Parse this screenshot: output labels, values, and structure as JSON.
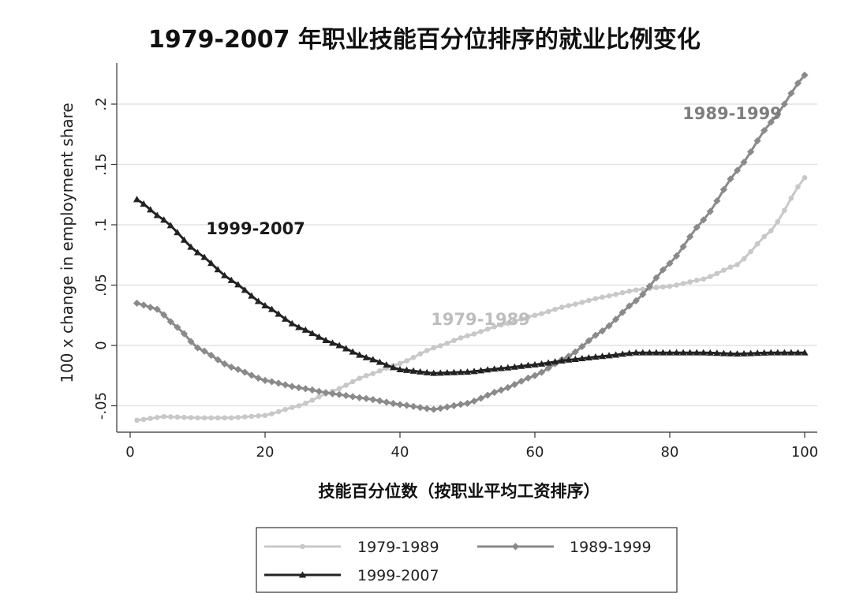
{
  "chart_data": {
    "type": "line",
    "title": "1979-2007 年职业技能百分位排序的就业比例变化",
    "xlabel": "技能百分位数（按职业平均工资排序）",
    "ylabel": "100 x change in employment share",
    "xlim": [
      0,
      100
    ],
    "ylim": [
      -0.065,
      0.225
    ],
    "x_ticks": [
      0,
      20,
      40,
      60,
      80,
      100
    ],
    "x_tick_labels": [
      "0",
      "20",
      "40",
      "60",
      "80",
      "100"
    ],
    "y_ticks": [
      -0.05,
      0,
      0.05,
      0.1,
      0.15,
      0.2
    ],
    "y_tick_labels": [
      "-.05",
      "0",
      ".05",
      ".1",
      ".15",
      ".2"
    ],
    "grid": true,
    "legend_position": "bottom",
    "series": [
      {
        "name": "1979-1989",
        "marker": "circle",
        "color": "#c8c8c8",
        "annotation": "1979-1989",
        "points": [
          [
            1,
            -0.062
          ],
          [
            5,
            -0.059
          ],
          [
            10,
            -0.06
          ],
          [
            15,
            -0.06
          ],
          [
            20,
            -0.058
          ],
          [
            25,
            -0.05
          ],
          [
            30,
            -0.038
          ],
          [
            35,
            -0.025
          ],
          [
            40,
            -0.015
          ],
          [
            45,
            -0.002
          ],
          [
            50,
            0.008
          ],
          [
            55,
            0.017
          ],
          [
            60,
            0.025
          ],
          [
            65,
            0.033
          ],
          [
            70,
            0.04
          ],
          [
            75,
            0.046
          ],
          [
            80,
            0.049
          ],
          [
            85,
            0.055
          ],
          [
            90,
            0.067
          ],
          [
            95,
            0.095
          ],
          [
            100,
            0.139
          ]
        ]
      },
      {
        "name": "1989-1999",
        "marker": "diamond",
        "color": "#8a8a8a",
        "annotation": "1989-1999",
        "points": [
          [
            1,
            0.035
          ],
          [
            4,
            0.03
          ],
          [
            7,
            0.015
          ],
          [
            10,
            -0.002
          ],
          [
            15,
            -0.018
          ],
          [
            20,
            -0.029
          ],
          [
            25,
            -0.035
          ],
          [
            30,
            -0.04
          ],
          [
            35,
            -0.044
          ],
          [
            40,
            -0.049
          ],
          [
            45,
            -0.053
          ],
          [
            50,
            -0.048
          ],
          [
            55,
            -0.037
          ],
          [
            60,
            -0.025
          ],
          [
            65,
            -0.009
          ],
          [
            70,
            0.012
          ],
          [
            75,
            0.037
          ],
          [
            80,
            0.068
          ],
          [
            85,
            0.104
          ],
          [
            90,
            0.145
          ],
          [
            95,
            0.185
          ],
          [
            100,
            0.224
          ]
        ]
      },
      {
        "name": "1999-2007",
        "marker": "triangle",
        "color": "#222222",
        "annotation": "1999-2007",
        "points": [
          [
            1,
            0.121
          ],
          [
            5,
            0.104
          ],
          [
            10,
            0.077
          ],
          [
            15,
            0.054
          ],
          [
            20,
            0.033
          ],
          [
            25,
            0.015
          ],
          [
            30,
            0.002
          ],
          [
            35,
            -0.01
          ],
          [
            40,
            -0.02
          ],
          [
            45,
            -0.023
          ],
          [
            50,
            -0.022
          ],
          [
            55,
            -0.019
          ],
          [
            60,
            -0.016
          ],
          [
            65,
            -0.012
          ],
          [
            70,
            -0.009
          ],
          [
            75,
            -0.006
          ],
          [
            80,
            -0.006
          ],
          [
            85,
            -0.006
          ],
          [
            90,
            -0.007
          ],
          [
            95,
            -0.006
          ],
          [
            100,
            -0.006
          ]
        ]
      }
    ]
  }
}
